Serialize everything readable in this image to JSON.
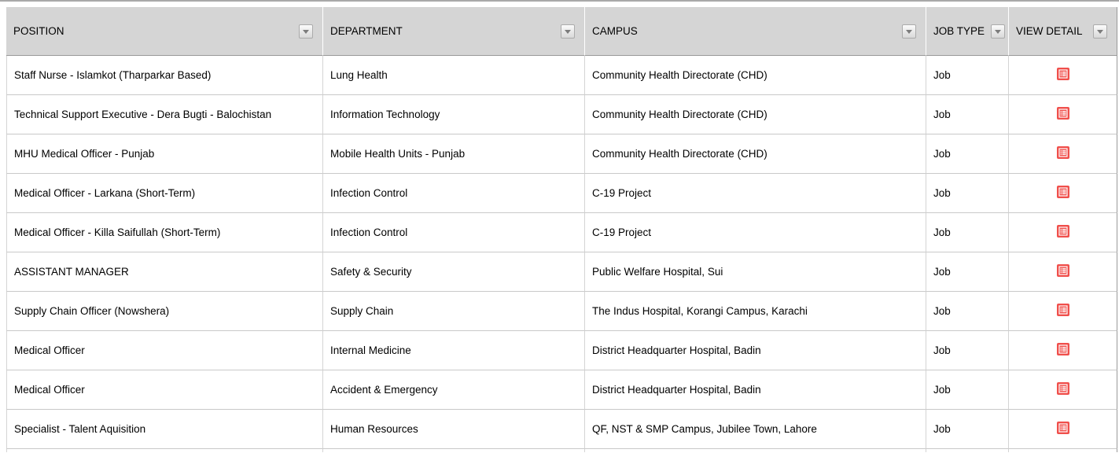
{
  "page": {
    "top_border_color": "#a9a9a9",
    "background": "#ffffff"
  },
  "table": {
    "header": {
      "background": "#d5d5d5",
      "filter_icon": "chevron-down-icon",
      "columns": [
        {
          "id": "position",
          "label": "POSITION"
        },
        {
          "id": "department",
          "label": "DEPARTMENT"
        },
        {
          "id": "campus",
          "label": "CAMPUS"
        },
        {
          "id": "job_type",
          "label": "JOB TYPE"
        },
        {
          "id": "view_detail",
          "label": "VIEW DETAIL"
        }
      ]
    },
    "view_detail": {
      "icon": "list-icon",
      "color": "#f04f4b"
    },
    "rows": [
      {
        "position": "Staff Nurse - Islamkot (Tharparkar Based)",
        "department": "Lung Health",
        "campus": "Community Health Directorate (CHD)",
        "job_type": "Job"
      },
      {
        "position": "Technical Support Executive - Dera Bugti - Balochistan",
        "department": "Information Technology",
        "campus": "Community Health Directorate (CHD)",
        "job_type": "Job"
      },
      {
        "position": "MHU Medical Officer - Punjab",
        "department": "Mobile Health Units - Punjab",
        "campus": "Community Health Directorate (CHD)",
        "job_type": "Job"
      },
      {
        "position": "Medical Officer - Larkana (Short-Term)",
        "department": "Infection Control",
        "campus": "C-19 Project",
        "job_type": "Job"
      },
      {
        "position": "Medical Officer - Killa Saifullah (Short-Term)",
        "department": "Infection Control",
        "campus": "C-19 Project",
        "job_type": "Job"
      },
      {
        "position": "ASSISTANT MANAGER",
        "department": "Safety & Security",
        "campus": "Public Welfare Hospital, Sui",
        "job_type": "Job"
      },
      {
        "position": "Supply Chain Officer (Nowshera)",
        "department": "Supply Chain",
        "campus": "The Indus Hospital, Korangi Campus, Karachi",
        "job_type": "Job"
      },
      {
        "position": "Medical Officer",
        "department": "Internal Medicine",
        "campus": "District Headquarter Hospital, Badin",
        "job_type": "Job"
      },
      {
        "position": "Medical Officer",
        "department": "Accident & Emergency",
        "campus": "District Headquarter Hospital, Badin",
        "job_type": "Job"
      },
      {
        "position": "Specialist - Talent Aquisition",
        "department": "Human Resources",
        "campus": "QF, NST & SMP Campus, Jubilee Town, Lahore",
        "job_type": "Job"
      }
    ]
  }
}
